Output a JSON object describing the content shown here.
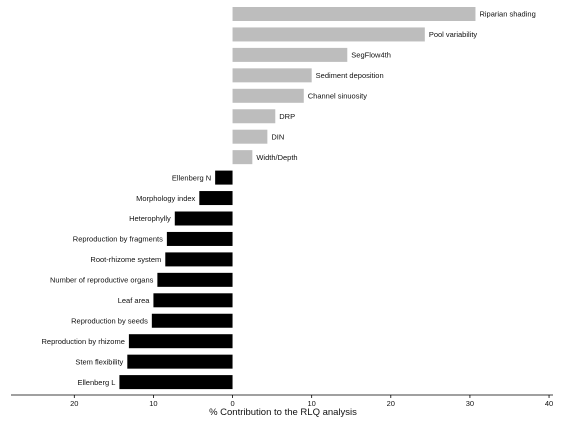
{
  "chart_data": {
    "type": "bar",
    "orientation": "horizontal",
    "xlabel": "% Contribution to the RLQ analysis",
    "ylabel": "",
    "title": "",
    "xlim": [
      -28,
      40.5
    ],
    "x_ticks": [
      -20,
      -10,
      0,
      10,
      20,
      30,
      40
    ],
    "x_tick_labels": [
      "20",
      "10",
      "0",
      "10",
      "20",
      "30",
      "40"
    ],
    "grid": false,
    "series": [
      {
        "color": "#bdbdbd",
        "label_position": "right",
        "categories": [
          "Riparian shading",
          "Pool variability",
          "SegFlow4th",
          "Sediment deposition",
          "Channel sinuosity",
          "DRP",
          "DIN",
          "Width/Depth"
        ],
        "values": [
          30.7,
          24.3,
          14.5,
          10.0,
          9.0,
          5.4,
          4.4,
          2.5
        ]
      },
      {
        "color": "#000000",
        "label_position": "left",
        "categories": [
          "Ellenberg N",
          "Morphology index",
          "Heterophylly",
          "Reproduction by fragments",
          "Root-rhizome system",
          "Number of reproductive organs",
          "Leaf area",
          "Reproduction by seeds",
          "Reproduction by rhizome",
          "Stem flexibility",
          "Ellenberg L"
        ],
        "values": [
          -2.2,
          -4.2,
          -7.3,
          -8.3,
          -8.5,
          -9.5,
          -10.0,
          -10.2,
          -13.1,
          -13.3,
          -14.3
        ]
      }
    ]
  }
}
